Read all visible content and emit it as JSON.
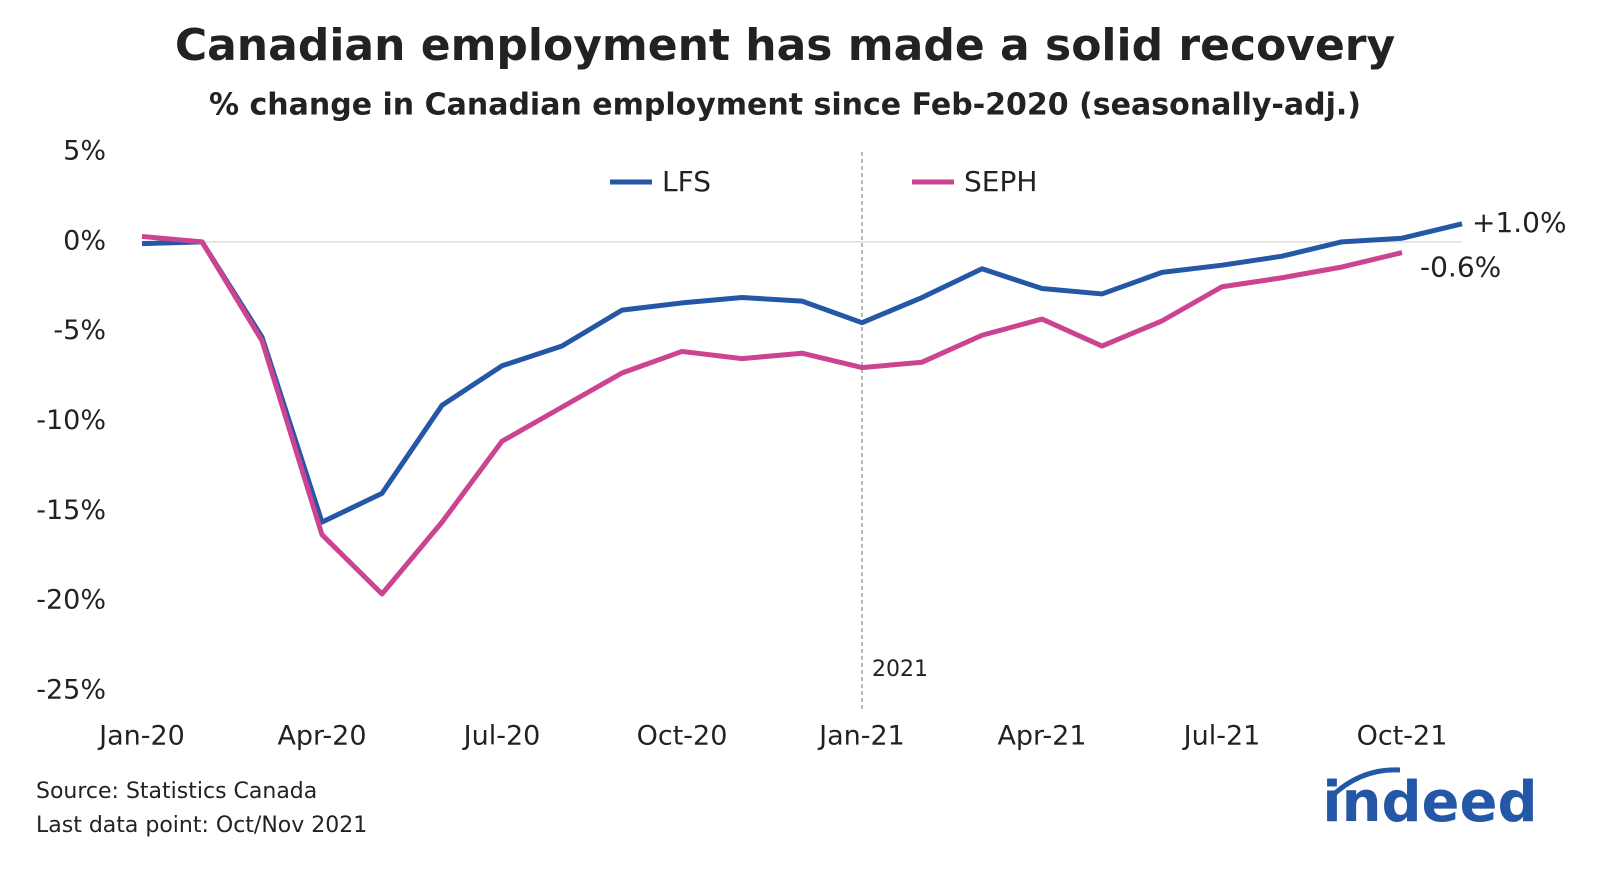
{
  "chart_data": {
    "type": "line",
    "title": "Canadian employment has made a solid recovery",
    "subtitle": "% change in Canadian employment since Feb-2020 (seasonally-adj.)",
    "categories": [
      "Jan-20",
      null,
      null,
      "Apr-20",
      null,
      null,
      "Jul-20",
      null,
      null,
      "Oct-20",
      null,
      null,
      "Jan-21",
      null,
      null,
      "Apr-21",
      null,
      null,
      "Jul-21",
      null,
      null,
      "Oct-21",
      null
    ],
    "series": [
      {
        "name": "LFS",
        "color": "#2457a6",
        "values": [
          -0.1,
          0,
          -5.3,
          -15.6,
          -14.0,
          -9.1,
          -6.9,
          -5.8,
          -3.8,
          -3.4,
          -3.1,
          -3.3,
          -4.5,
          -3.1,
          -1.5,
          -2.6,
          -2.9,
          -1.7,
          -1.3,
          -0.8,
          0.0,
          0.2,
          1.0
        ],
        "value_labels": [
          null,
          null,
          null,
          null,
          null,
          null,
          null,
          null,
          null,
          null,
          null,
          null,
          null,
          null,
          null,
          null,
          null,
          null,
          null,
          null,
          null,
          null,
          "+1.0%"
        ]
      },
      {
        "name": "SEPH",
        "color": "#cc4391",
        "values": [
          0.3,
          0,
          -5.5,
          -16.3,
          -19.6,
          -15.6,
          -11.1,
          -9.2,
          -7.3,
          -6.1,
          -6.5,
          -6.2,
          -7.0,
          -6.7,
          -5.2,
          -4.3,
          -5.8,
          -4.4,
          -2.5,
          -2.0,
          -1.4,
          -0.6,
          null
        ],
        "value_labels": [
          null,
          null,
          null,
          null,
          null,
          null,
          null,
          null,
          null,
          null,
          null,
          null,
          null,
          null,
          null,
          null,
          null,
          null,
          null,
          null,
          null,
          "-0.6%",
          null
        ]
      }
    ],
    "ylim": [
      -25,
      5
    ],
    "yticks": [
      {
        "value": 5,
        "label": "5%"
      },
      {
        "value": 0,
        "label": "0%"
      },
      {
        "value": -5,
        "label": "-5%"
      },
      {
        "value": -10,
        "label": "-10%"
      },
      {
        "value": -15,
        "label": "-15%"
      },
      {
        "value": -20,
        "label": "-20%"
      },
      {
        "value": -25,
        "label": "-25%"
      }
    ],
    "grid": false,
    "zero_line": true,
    "legend": "top",
    "annotations": [
      {
        "text": "2021",
        "x": "Jan-21"
      }
    ],
    "source": "Source: Statistics Canada",
    "note": "Last data point: Oct/Nov 2021",
    "logo": "indeed"
  }
}
